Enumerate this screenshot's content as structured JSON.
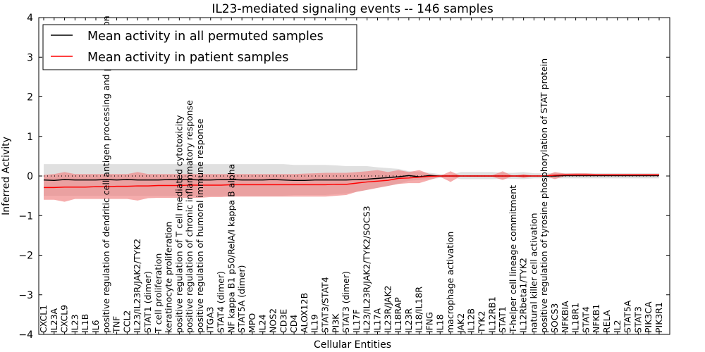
{
  "chart_data": {
    "type": "line",
    "title": "IL23-mediated signaling events -- 146 samples",
    "xlabel": "Cellular Entities",
    "ylabel": "Inferred Activity",
    "ylim": [
      -4,
      4
    ],
    "yticks": [
      "4",
      "3",
      "2",
      "1",
      "0",
      "−1",
      "−2",
      "−3",
      "−4"
    ],
    "ytick_values": [
      4,
      3,
      2,
      1,
      0,
      -1,
      -2,
      -3,
      -4
    ],
    "legend": {
      "placement": "top-left",
      "entries": [
        "Mean activity in all permuted samples",
        "Mean activity in patient samples"
      ]
    },
    "colors": {
      "permuted": "#000000",
      "patient": "#ff0000",
      "permuted_band": "#d3d3d3",
      "patient_band": "#f08080"
    },
    "categories": [
      "CXCL1",
      "IL23A",
      "CXCL9",
      "IL23",
      "IL1B",
      "IL6",
      "positive regulation of dendritic cell antigen processing and presentation",
      "TNF",
      "CCL2",
      "IL23/IL23R/JAK2/TYK2",
      "STAT1 (dimer)",
      "T cell proliferation",
      "keratinocyte proliferation",
      "positive regulation of T cell mediated cytotoxicity",
      "positive regulation of chronic inflammatory response",
      "positive regulation of humoral immune response",
      "ITGA3",
      "STAT4 (dimer)",
      "NF kappa B1 p50/RelA/I kappa B alpha",
      "STAT5A (dimer)",
      "MPO",
      "IL24",
      "NOS2",
      "CD3E",
      "CD4",
      "ALOX12B",
      "IL19",
      "STAT3/STAT4",
      "PI3K",
      "STAT3 (dimer)",
      "IL17F",
      "IL23/IL23R/JAK2/TYK2/SOCS3",
      "IL17A",
      "IL23R/JAK2",
      "IL18RAP",
      "IL23R",
      "IL18/IL18R",
      "IFNG",
      "IL18",
      "macrophage activation",
      "JAK2",
      "IL12B",
      "TYK2",
      "IL12RB1",
      "STAT1",
      "T-helper cell lineage commitment",
      "IL12Rbeta1/TYK2",
      "natural killer cell activation",
      "positive regulation of tyrosine phosphorylation of STAT protein",
      "SOCS3",
      "NFKBIA",
      "IL18R1",
      "STAT4",
      "NFKB1",
      "RELA",
      "IL2",
      "STAT5A",
      "STAT3",
      "PIK3CA",
      "PIK3R1"
    ],
    "series": [
      {
        "name": "Mean activity in all permuted samples",
        "values": [
          -0.1,
          -0.11,
          -0.09,
          -0.1,
          -0.1,
          -0.1,
          -0.09,
          -0.1,
          -0.09,
          -0.1,
          -0.1,
          -0.1,
          -0.09,
          -0.09,
          -0.09,
          -0.1,
          -0.1,
          -0.09,
          -0.09,
          -0.1,
          -0.1,
          -0.1,
          -0.09,
          -0.1,
          -0.11,
          -0.11,
          -0.1,
          -0.1,
          -0.1,
          -0.1,
          -0.09,
          -0.08,
          -0.06,
          -0.04,
          -0.02,
          0.01,
          -0.02,
          0.01,
          0,
          0,
          0,
          0,
          0,
          0,
          0,
          0,
          0,
          0,
          0,
          0,
          0.01,
          0.01,
          0.01,
          0.01,
          0.01,
          0.01,
          0.01,
          0.01,
          0.01,
          0.01
        ],
        "upper": [
          0.3,
          0.3,
          0.3,
          0.3,
          0.3,
          0.3,
          0.3,
          0.3,
          0.3,
          0.3,
          0.3,
          0.3,
          0.3,
          0.3,
          0.3,
          0.3,
          0.3,
          0.3,
          0.3,
          0.3,
          0.3,
          0.3,
          0.3,
          0.3,
          0.28,
          0.28,
          0.28,
          0.28,
          0.27,
          0.25,
          0.25,
          0.25,
          0.22,
          0.2,
          0.18,
          0.12,
          0.1,
          0.08,
          0.05,
          0.03,
          0.1,
          0.1,
          0.1,
          0.1,
          0.08,
          0.08,
          0.1,
          0.07,
          0.07,
          0.07,
          0.07,
          0.07,
          0.07,
          0.07,
          0.07,
          0.07,
          0.07,
          0.07,
          0.07,
          0.07
        ],
        "lower": [
          -0.5,
          -0.5,
          -0.5,
          -0.5,
          -0.5,
          -0.5,
          -0.5,
          -0.5,
          -0.5,
          -0.5,
          -0.5,
          -0.5,
          -0.5,
          -0.5,
          -0.5,
          -0.5,
          -0.5,
          -0.5,
          -0.5,
          -0.5,
          -0.5,
          -0.5,
          -0.5,
          -0.5,
          -0.48,
          -0.48,
          -0.48,
          -0.48,
          -0.46,
          -0.44,
          -0.4,
          -0.35,
          -0.3,
          -0.25,
          -0.2,
          -0.12,
          -0.1,
          -0.08,
          -0.05,
          -0.03,
          -0.08,
          -0.08,
          -0.08,
          -0.08,
          -0.07,
          -0.07,
          -0.08,
          -0.06,
          -0.06,
          -0.06,
          -0.06,
          -0.06,
          -0.06,
          -0.06,
          -0.06,
          -0.06,
          -0.06,
          -0.06,
          -0.06,
          -0.06
        ]
      },
      {
        "name": "Mean activity in patient samples",
        "values": [
          -0.29,
          -0.29,
          -0.28,
          -0.28,
          -0.28,
          -0.27,
          -0.27,
          -0.26,
          -0.26,
          -0.25,
          -0.25,
          -0.24,
          -0.24,
          -0.24,
          -0.23,
          -0.23,
          -0.23,
          -0.23,
          -0.22,
          -0.22,
          -0.22,
          -0.22,
          -0.22,
          -0.22,
          -0.22,
          -0.22,
          -0.22,
          -0.22,
          -0.21,
          -0.21,
          -0.18,
          -0.15,
          -0.13,
          -0.11,
          -0.06,
          -0.05,
          -0.03,
          -0.01,
          0,
          0,
          0,
          0,
          0,
          0,
          0,
          0,
          0,
          0,
          0,
          0.02,
          0.03,
          0.03,
          0.03,
          0.03,
          0.03,
          0.03,
          0.03,
          0.03,
          0.03,
          0.03
        ],
        "upper": [
          0.03,
          0.05,
          0.1,
          0.05,
          0.05,
          0.05,
          0.05,
          0.05,
          0.05,
          0.1,
          0.05,
          0.05,
          0.05,
          0.05,
          0.05,
          0.05,
          0.05,
          0.05,
          0.05,
          0.05,
          0.05,
          0.05,
          0.05,
          0.05,
          0.05,
          0.06,
          0.07,
          0.08,
          0.08,
          0.08,
          0.1,
          0.12,
          0.15,
          0.1,
          0.15,
          0.1,
          0.15,
          0.05,
          0,
          0.12,
          0,
          0.02,
          0.02,
          0.02,
          0.12,
          0,
          0.05,
          0,
          0,
          0.1,
          0.06,
          0.07,
          0.07,
          0.05,
          0.05,
          0.05,
          0.05,
          0.05,
          0.05,
          0.05
        ],
        "lower": [
          -0.6,
          -0.6,
          -0.65,
          -0.58,
          -0.58,
          -0.58,
          -0.58,
          -0.58,
          -0.58,
          -0.62,
          -0.56,
          -0.55,
          -0.55,
          -0.55,
          -0.55,
          -0.55,
          -0.53,
          -0.53,
          -0.52,
          -0.52,
          -0.52,
          -0.52,
          -0.52,
          -0.52,
          -0.52,
          -0.52,
          -0.52,
          -0.52,
          -0.5,
          -0.48,
          -0.4,
          -0.35,
          -0.3,
          -0.25,
          -0.2,
          -0.18,
          -0.18,
          -0.1,
          -0.02,
          -0.15,
          0,
          -0.02,
          -0.02,
          -0.02,
          -0.1,
          0,
          -0.05,
          0,
          0,
          -0.08,
          0,
          0,
          0,
          0,
          0,
          0,
          0,
          0,
          0,
          0
        ]
      }
    ]
  }
}
